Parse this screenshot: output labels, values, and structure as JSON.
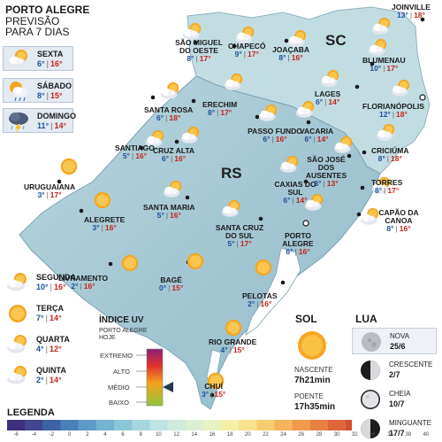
{
  "header": {
    "line1": "PORTO ALEGRE",
    "line2": "PREVISÃO",
    "line3": "PARA 7 DIAS"
  },
  "states": {
    "sc": "SC",
    "rs": "RS"
  },
  "forecast": [
    {
      "day": "SEXTA",
      "min": "6°",
      "max": "16°",
      "icon": "partly-cloudy-icon"
    },
    {
      "day": "SÁBADO",
      "min": "8°",
      "max": "15°",
      "icon": "sun-cloud-rain-icon"
    },
    {
      "day": "DOMINGO",
      "min": "11°",
      "max": "14°",
      "icon": "storm-icon"
    },
    {
      "day": "SEGUNDA",
      "min": "10°",
      "max": "16°",
      "icon": "partly-cloudy-icon"
    },
    {
      "day": "TERÇA",
      "min": "7°",
      "max": "14°",
      "icon": "sun-icon"
    },
    {
      "day": "QUARTA",
      "min": "4°",
      "max": "12°",
      "icon": "partly-cloudy-icon"
    },
    {
      "day": "QUINTA",
      "min": "2°",
      "max": "14°",
      "icon": "partly-cloudy-icon"
    }
  ],
  "cities": [
    {
      "name": "JOINVILLE",
      "min": "13°",
      "max": "18°"
    },
    {
      "name": "CHAPECÓ",
      "min": "9°",
      "max": "17°"
    },
    {
      "name": "SÃO MIGUEL DO OESTE",
      "min": "8°",
      "max": "17°"
    },
    {
      "name": "JOAÇABA",
      "min": "8°",
      "max": "16°"
    },
    {
      "name": "BLUMENAU",
      "min": "10°",
      "max": "17°"
    },
    {
      "name": "LAGES",
      "min": "6°",
      "max": "14°"
    },
    {
      "name": "FLORIANÓPOLIS",
      "min": "12°",
      "max": "18°"
    },
    {
      "name": "ERECHIM",
      "min": "8°",
      "max": "17°"
    },
    {
      "name": "SANTA ROSA",
      "min": "6°",
      "max": "18°"
    },
    {
      "name": "PASSO FUNDO",
      "min": "6°",
      "max": "16°"
    },
    {
      "name": "VACARIA",
      "min": "6°",
      "max": "14°"
    },
    {
      "name": "CRICIÚMA",
      "min": "8°",
      "max": "18°"
    },
    {
      "name": "SANTIAGO",
      "min": "5°",
      "max": "16°"
    },
    {
      "name": "CRUZ ALTA",
      "min": "6°",
      "max": "16°"
    },
    {
      "name": "SÃO JOSÉ DOS AUSENTES",
      "min": "3°",
      "max": "13°"
    },
    {
      "name": "URUGUAIANA",
      "min": "3°",
      "max": "17°"
    },
    {
      "name": "TORRES",
      "min": "8°",
      "max": "17°"
    },
    {
      "name": "CAXIAS DO SUL",
      "min": "6°",
      "max": "14°"
    },
    {
      "name": "SANTA MARIA",
      "min": "5°",
      "max": "16°"
    },
    {
      "name": "ALEGRETE",
      "min": "3°",
      "max": "16°"
    },
    {
      "name": "CAPÃO DA CANOA",
      "min": "8°",
      "max": "16°"
    },
    {
      "name": "SANTA CRUZ DO SUL",
      "min": "5°",
      "max": "17°"
    },
    {
      "name": "PORTO ALEGRE",
      "min": "6°",
      "max": "16°"
    },
    {
      "name": "LIVRAMENTO",
      "min": "2°",
      "max": "16°"
    },
    {
      "name": "BAGÉ",
      "min": "0°",
      "max": "15°"
    },
    {
      "name": "PELOTAS",
      "min": "2°",
      "max": "16°"
    },
    {
      "name": "RIO GRANDE",
      "min": "4°",
      "max": "15°"
    },
    {
      "name": "CHUÍ",
      "min": "3°",
      "max": "15°"
    }
  ],
  "uv": {
    "title": "ÍNDICE UV",
    "subtitle1": "PORTO ALEGRE",
    "subtitle2": "HOJE",
    "levels": [
      "EXTREMO",
      "ALTO",
      "MÉDIO",
      "BAIXO"
    ],
    "current": "MÉDIO"
  },
  "sol": {
    "title": "SOL",
    "sunrise_label": "NASCENTE",
    "sunrise": "7h21min",
    "sunset_label": "POENTE",
    "sunset": "17h35min"
  },
  "lua": {
    "title": "LUA",
    "phases": [
      {
        "name": "NOVA",
        "date": "25/6",
        "icon": "new-moon-icon"
      },
      {
        "name": "CRESCENTE",
        "date": "2/7",
        "icon": "first-quarter-moon-icon"
      },
      {
        "name": "CHEIA",
        "date": "10/7",
        "icon": "full-moon-icon"
      },
      {
        "name": "MINGUANTE",
        "date": "17/7",
        "icon": "last-quarter-moon-icon"
      }
    ]
  },
  "legend": {
    "title": "LEGENDA",
    "scale": [
      "-6",
      "-4",
      "-2",
      "0",
      "2",
      "4",
      "6",
      "8",
      "10",
      "12",
      "14",
      "16",
      "18",
      "20",
      "22",
      "24",
      "26",
      "28",
      "30",
      "32",
      "34",
      "36",
      "38",
      "40"
    ],
    "colors": [
      "#3d2f7a",
      "#41468f",
      "#3d63a6",
      "#4a80b8",
      "#5b9bc6",
      "#72b3d1",
      "#8bc6d8",
      "#a6d6df",
      "#bfe2e2",
      "#cfe9dc",
      "#dcefd2",
      "#e9f2c2",
      "#f4f0a8",
      "#f8e18b",
      "#f7cd70",
      "#f4b45b",
      "#ef9a4c",
      "#e88042",
      "#df663a",
      "#d34d33",
      "#c2362d",
      "#ab2528",
      "#8e1a24",
      "#6f1420"
    ]
  },
  "colors": {
    "land": "#a9ccd6",
    "sea": "#ffffff",
    "min_temp": "#1c4f9a",
    "max_temp": "#c4241b"
  }
}
